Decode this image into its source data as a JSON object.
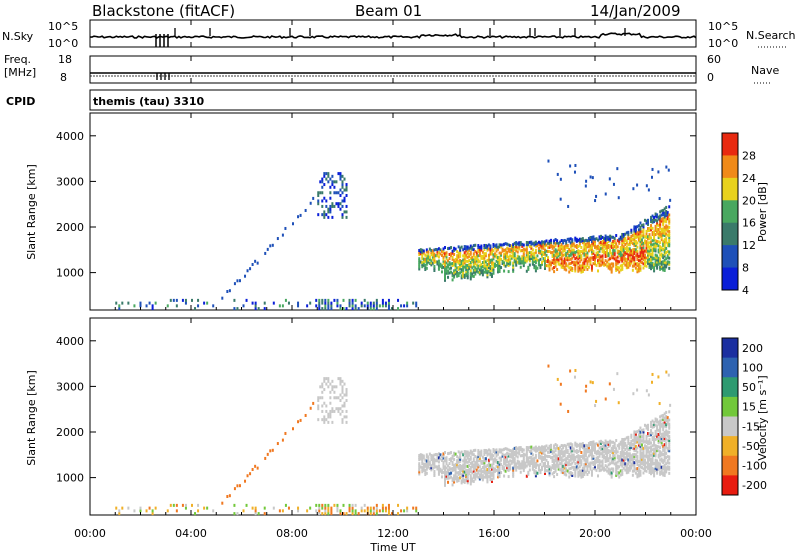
{
  "header": {
    "radar": "Blackstone (fitACF)",
    "beam": "Beam 01",
    "date": "14/Jan/2009"
  },
  "left_labels": {
    "nsky": "N.Sky",
    "nsky_top": "10^5",
    "nsky_bot": "10^0",
    "freq": "Freq.",
    "freq_unit": "[MHz]",
    "freq_top": "18",
    "freq_bot": "8",
    "cpid": "CPID"
  },
  "right_labels": {
    "nsearch": "N.Search",
    "nsearch_top": "10^5",
    "nsearch_bot": "10^0",
    "nave": "Nave",
    "nave_top": "60",
    "nave_bot": "0"
  },
  "cpid_text": "themis (tau) 3310",
  "chart_data": [
    {
      "type": "heatmap",
      "title": "Power",
      "ylabel": "Slant Range [km]",
      "xlabel": "Time UT",
      "xlim": [
        "00:00",
        "24:00"
      ],
      "ylim": [
        180,
        4500
      ],
      "x_ticks": [
        "00:00",
        "04:00",
        "08:00",
        "12:00",
        "16:00",
        "20:00",
        "00:00"
      ],
      "y_ticks": [
        1000,
        2000,
        3000,
        4000
      ],
      "colorbar": {
        "label": "Power [dB]",
        "ticks": [
          4,
          8,
          12,
          16,
          20,
          24,
          28
        ],
        "colors": [
          "#0a1fd8",
          "#1e50b8",
          "#3a7a6a",
          "#49a860",
          "#e8d21c",
          "#f08a18",
          "#e82a10"
        ]
      }
    },
    {
      "type": "heatmap",
      "title": "Velocity",
      "ylabel": "Slant Range [km]",
      "xlabel": "Time UT",
      "xlim": [
        "00:00",
        "24:00"
      ],
      "ylim": [
        180,
        4500
      ],
      "x_ticks": [
        "00:00",
        "04:00",
        "08:00",
        "12:00",
        "16:00",
        "20:00",
        "00:00"
      ],
      "y_ticks": [
        1000,
        2000,
        3000,
        4000
      ],
      "colorbar": {
        "label": "Velocity [m s⁻¹]",
        "ticks": [
          200,
          100,
          50,
          15,
          -15,
          -50,
          -100,
          -200
        ],
        "colors": [
          "#1b2fa0",
          "#2d62b0",
          "#2e9a70",
          "#72c83a",
          "#c8c8c8",
          "#f0b028",
          "#f07820",
          "#e81c10"
        ]
      }
    }
  ]
}
